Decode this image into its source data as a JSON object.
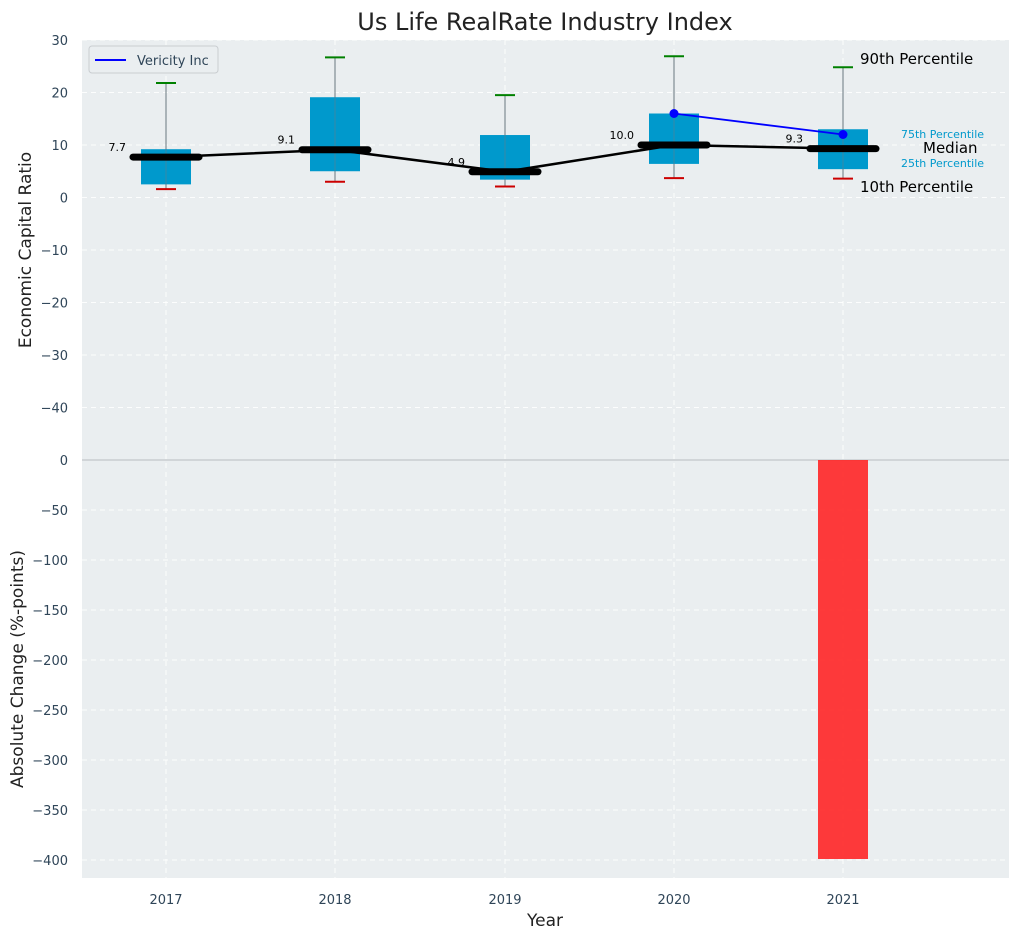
{
  "chart_data": [
    {
      "type": "box",
      "title": "Us Life RealRate Industry Index",
      "ylabel": "Economic Capital Ratio",
      "ylim": [
        -50,
        30
      ],
      "yticks": [
        30,
        20,
        10,
        0,
        -10,
        -20,
        -30,
        -40
      ],
      "tick_labels": [
        "30",
        "20",
        "10",
        "0",
        "−10",
        "−20",
        "−30",
        "−40"
      ],
      "categories": [
        "2017",
        "2018",
        "2019",
        "2020",
        "2021"
      ],
      "percentiles": {
        "p10": [
          1.6,
          3.0,
          2.1,
          3.7,
          3.6
        ],
        "p25": [
          2.5,
          5.0,
          3.4,
          6.4,
          5.4
        ],
        "median": [
          7.7,
          9.1,
          4.9,
          10.0,
          9.3
        ],
        "p75": [
          9.2,
          19.1,
          11.9,
          16.0,
          13.0
        ],
        "p90": [
          21.8,
          26.7,
          19.5,
          26.9,
          24.8
        ]
      },
      "median_labels": [
        "7.7",
        "9.1",
        "4.9",
        "10.0",
        "9.3"
      ],
      "series": [
        {
          "name": "Vericity Inc",
          "x": [
            "2020",
            "2021"
          ],
          "values": [
            16.0,
            12.0
          ],
          "color": "#0000ff"
        }
      ],
      "legend": {
        "entry": "Vericity Inc",
        "placement": "top-left"
      },
      "annotations": {
        "p90": "90th Percentile",
        "p75": "75th Percentile",
        "median": "Median",
        "p25": "25th Percentile",
        "p10": "10th Percentile"
      },
      "colors": {
        "box": "#0099cc",
        "median": "#000000",
        "p90_cap": "#008000",
        "p10_cap": "#cc0000",
        "annotation_small": "#0099cc"
      }
    },
    {
      "type": "bar",
      "ylabel": "Absolute Change (%-points)",
      "xlabel": "Year",
      "ylim": [
        -418,
        0
      ],
      "yticks": [
        0,
        -50,
        -100,
        -150,
        -200,
        -250,
        -300,
        -350,
        -400
      ],
      "tick_labels": [
        "0",
        "−50",
        "−100",
        "−150",
        "−200",
        "−250",
        "−300",
        "−350",
        "−400"
      ],
      "categories": [
        "2017",
        "2018",
        "2019",
        "2020",
        "2021"
      ],
      "values": [
        null,
        null,
        null,
        null,
        -399
      ],
      "colors": {
        "bar": "#ff2020"
      }
    }
  ]
}
